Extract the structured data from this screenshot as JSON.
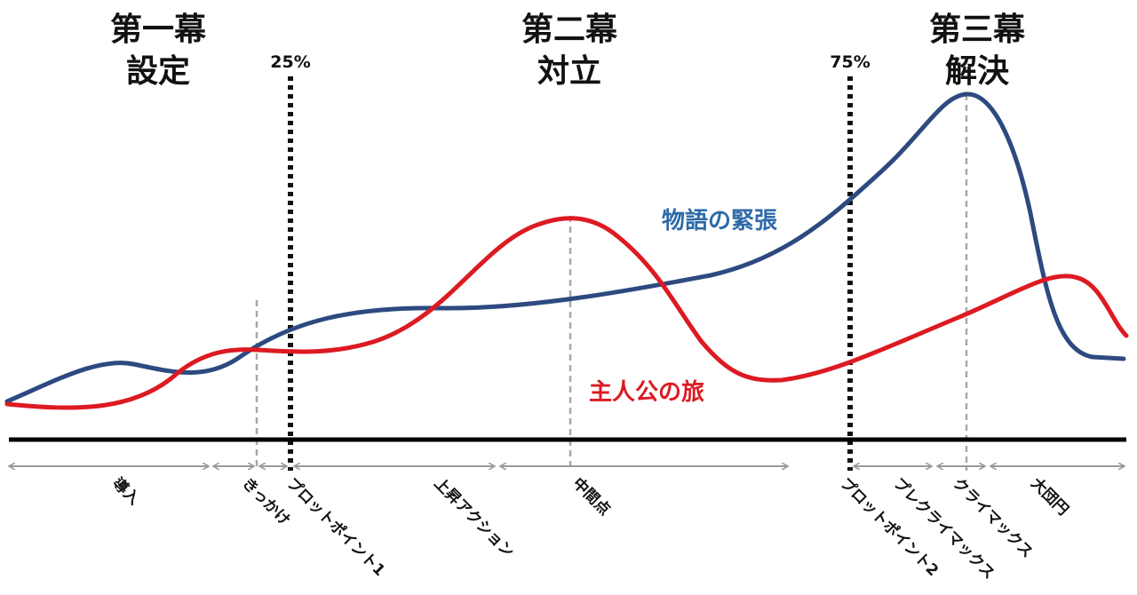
{
  "acts": [
    {
      "name": "第一幕",
      "subtitle": "設定"
    },
    {
      "name": "第二幕",
      "subtitle": "対立"
    },
    {
      "name": "第三幕",
      "subtitle": "解決"
    }
  ],
  "plot_points": [
    {
      "label": "25%"
    },
    {
      "label": "75%"
    }
  ],
  "curves": {
    "tension": {
      "label": "物語の緊張",
      "color": "#2d4a80"
    },
    "journey": {
      "label": "主人公の旅",
      "color": "#dd1a22"
    }
  },
  "stages": [
    "導入",
    "きっかけ",
    "プロットポイント1",
    "上昇アクション",
    "中間点",
    "プロットポイント2",
    "プレクライマックス",
    "クライマックス",
    "大団円"
  ],
  "colors": {
    "axis": "#000000",
    "timeline": "#9a9a9a",
    "guide": "#a8a8a8"
  }
}
